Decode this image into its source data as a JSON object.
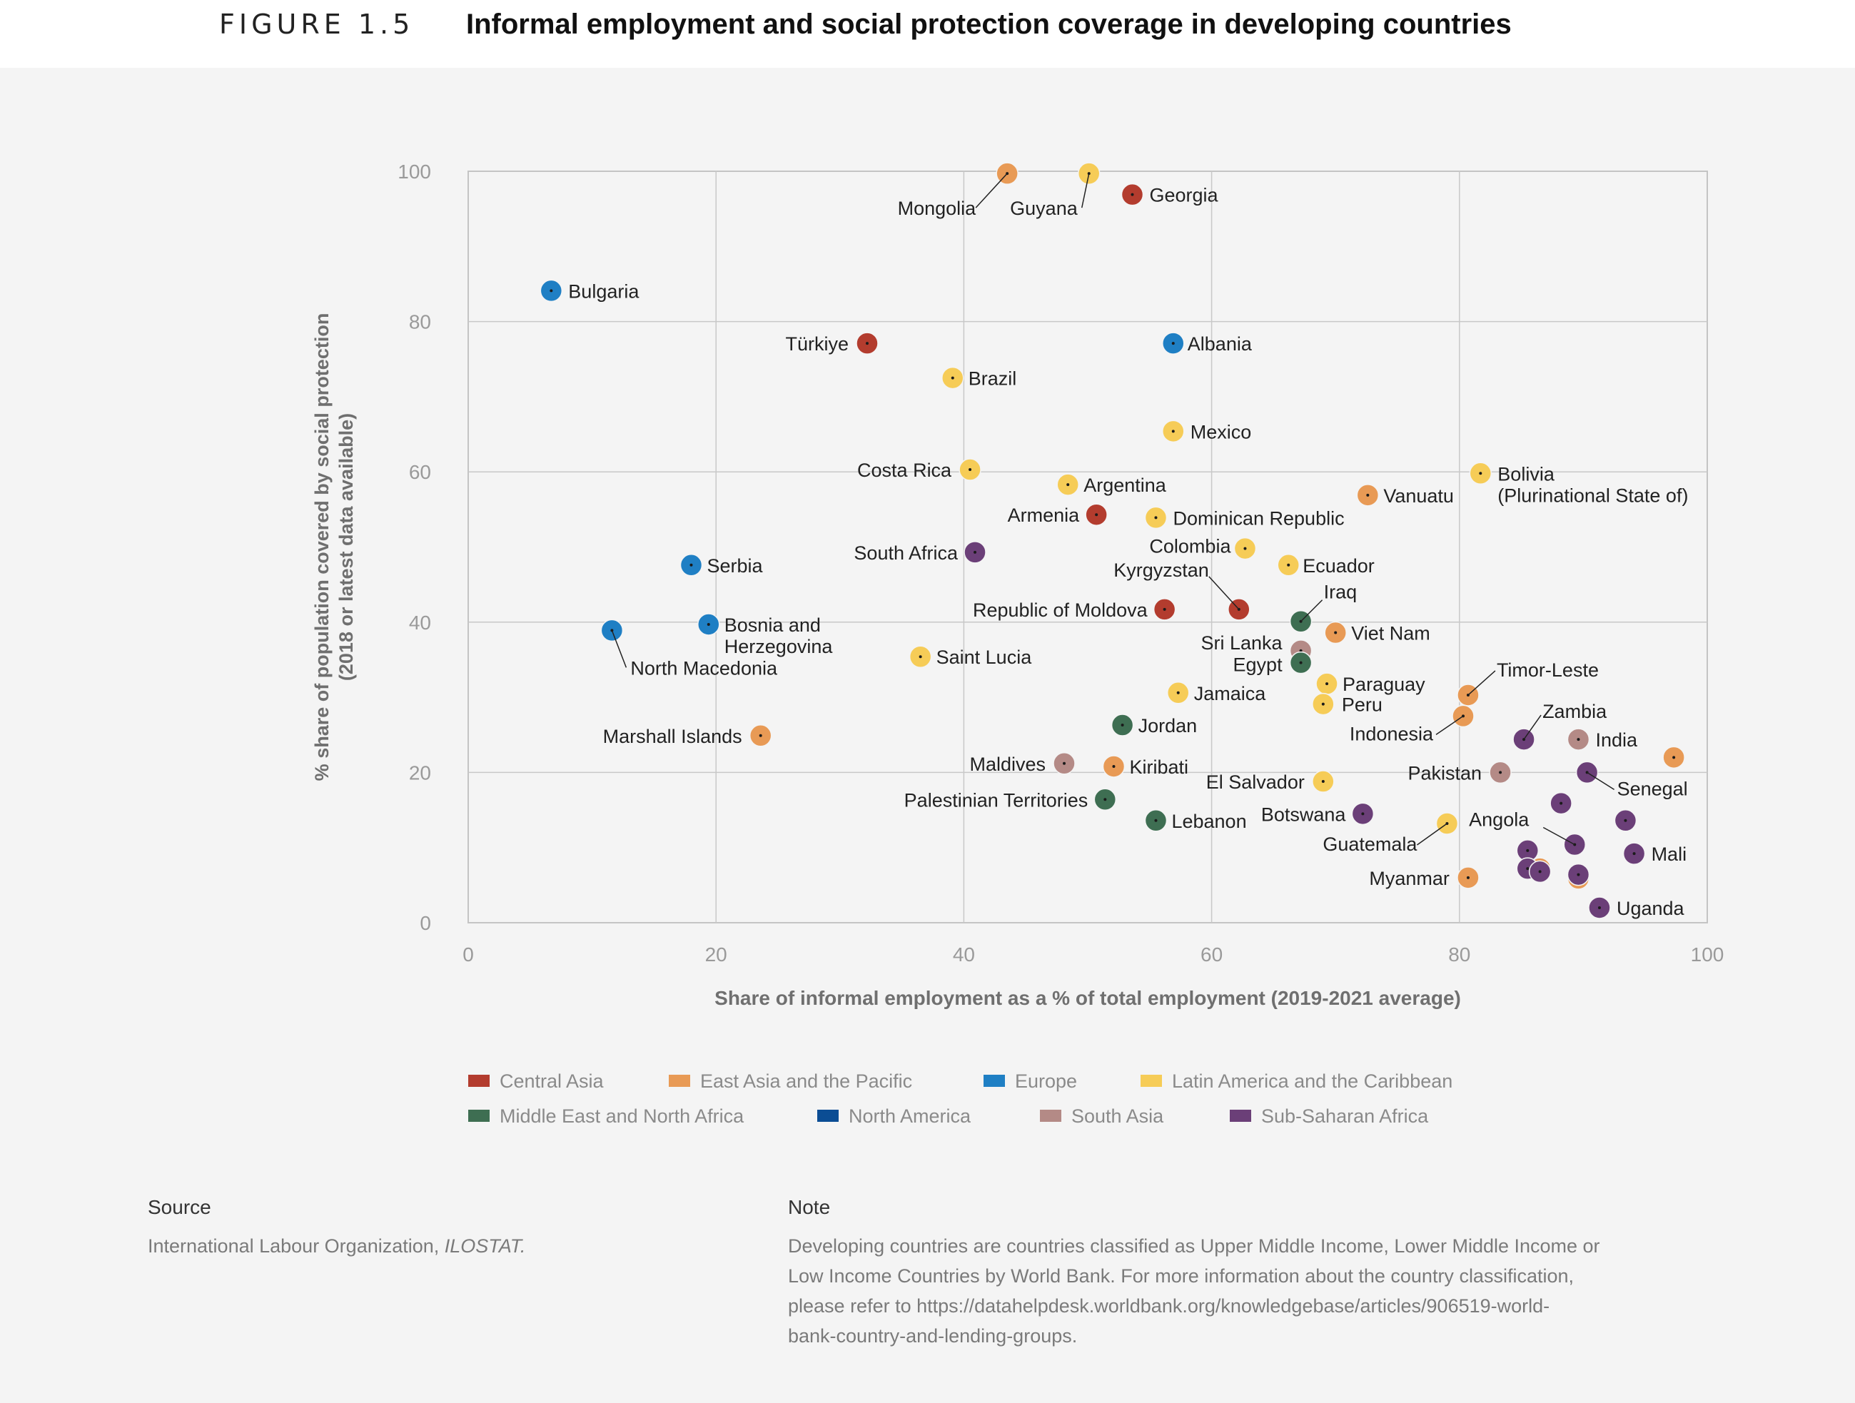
{
  "figure": {
    "label": "FIGURE 1.5",
    "title": "Informal employment and social protection coverage in developing countries"
  },
  "chart_data": {
    "type": "scatter",
    "xlabel": "Share of informal employment as a % of total employment (2019-2021 average)",
    "ylabel_line1": "% share of population covered by social protection",
    "ylabel_line2": "(2018 or latest data available)",
    "xlim": [
      0,
      100
    ],
    "ylim": [
      0,
      100
    ],
    "xticks": [
      0,
      20,
      40,
      60,
      80,
      100
    ],
    "yticks": [
      0,
      20,
      40,
      60,
      80,
      100
    ],
    "grid": true,
    "legend_position": "bottom",
    "series": [
      {
        "name": "Central Asia",
        "color": "#b33c2e"
      },
      {
        "name": "East Asia and the Pacific",
        "color": "#e89a55"
      },
      {
        "name": "Europe",
        "color": "#1f7fc4"
      },
      {
        "name": "Latin America and the Caribbean",
        "color": "#f6cc57"
      },
      {
        "name": "Middle East and North Africa",
        "color": "#3e6e52"
      },
      {
        "name": "North America",
        "color": "#0b4d94"
      },
      {
        "name": "South Asia",
        "color": "#b48a86"
      },
      {
        "name": "Sub-Saharan Africa",
        "color": "#6b3f78"
      }
    ],
    "points": [
      {
        "label": "Mongolia",
        "x": 43.5,
        "y": 99.7,
        "series": 1
      },
      {
        "label": "Guyana",
        "x": 50.1,
        "y": 99.7,
        "series": 3
      },
      {
        "label": "Georgia",
        "x": 53.6,
        "y": 96.9,
        "series": 0
      },
      {
        "label": "Bulgaria",
        "x": 6.7,
        "y": 84.1,
        "series": 2
      },
      {
        "label": "Türkiye",
        "x": 32.2,
        "y": 77.1,
        "series": 0
      },
      {
        "label": "Albania",
        "x": 56.9,
        "y": 77.1,
        "series": 2
      },
      {
        "label": "Brazil",
        "x": 39.1,
        "y": 72.5,
        "series": 3
      },
      {
        "label": "Mexico",
        "x": 56.9,
        "y": 65.4,
        "series": 3
      },
      {
        "label": "Costa Rica",
        "x": 40.5,
        "y": 60.3,
        "series": 3
      },
      {
        "label": "Bolivia",
        "label2": "(Plurinational State of)",
        "x": 81.7,
        "y": 59.8,
        "series": 3
      },
      {
        "label": "Argentina",
        "x": 48.4,
        "y": 58.3,
        "series": 3
      },
      {
        "label": "Vanuatu",
        "x": 72.6,
        "y": 56.9,
        "series": 1
      },
      {
        "label": "Armenia",
        "x": 50.7,
        "y": 54.3,
        "series": 0
      },
      {
        "label": "Dominican Republic",
        "x": 55.5,
        "y": 53.9,
        "series": 3
      },
      {
        "label": "Colombia",
        "x": 62.7,
        "y": 49.8,
        "series": 3
      },
      {
        "label": "South Africa",
        "x": 40.9,
        "y": 49.3,
        "series": 7
      },
      {
        "label": "Serbia",
        "x": 18.0,
        "y": 47.6,
        "series": 2
      },
      {
        "label": "Ecuador",
        "x": 66.2,
        "y": 47.6,
        "series": 3
      },
      {
        "label": "Kyrgyzstan",
        "x": 62.2,
        "y": 41.7,
        "series": 0
      },
      {
        "label": "Republic of Moldova",
        "x": 56.2,
        "y": 41.7,
        "series": 0
      },
      {
        "label": "Iraq",
        "x": 67.2,
        "y": 40.1,
        "series": 4
      },
      {
        "label": "Bosnia and",
        "label2": "Herzegovina",
        "x": 19.4,
        "y": 39.7,
        "series": 2
      },
      {
        "label": "North Macedonia",
        "x": 11.6,
        "y": 38.9,
        "series": 2
      },
      {
        "label": "Viet Nam",
        "x": 70.0,
        "y": 38.6,
        "series": 1
      },
      {
        "label": "Sri Lanka",
        "x": 67.2,
        "y": 36.2,
        "series": 6
      },
      {
        "label": "Saint Lucia",
        "x": 36.5,
        "y": 35.4,
        "series": 3
      },
      {
        "label": "Egypt",
        "x": 67.2,
        "y": 34.6,
        "series": 4
      },
      {
        "label": "Paraguay",
        "x": 69.3,
        "y": 31.8,
        "series": 3
      },
      {
        "label": "Jamaica",
        "x": 57.3,
        "y": 30.6,
        "series": 3
      },
      {
        "label": "Timor-Leste",
        "x": 80.7,
        "y": 30.3,
        "series": 1
      },
      {
        "label": "Peru",
        "x": 69.0,
        "y": 29.1,
        "series": 3
      },
      {
        "label": "Indonesia",
        "x": 80.3,
        "y": 27.5,
        "series": 1
      },
      {
        "label": "Jordan",
        "x": 52.8,
        "y": 26.3,
        "series": 4
      },
      {
        "label": "Marshall Islands",
        "x": 23.6,
        "y": 24.9,
        "series": 1
      },
      {
        "label": "Zambia",
        "x": 85.2,
        "y": 24.4,
        "series": 7
      },
      {
        "label": "India",
        "x": 89.6,
        "y": 24.4,
        "series": 6
      },
      {
        "label": "",
        "x": 97.3,
        "y": 22.0,
        "series": 1
      },
      {
        "label": "Maldives",
        "x": 48.1,
        "y": 21.2,
        "series": 6
      },
      {
        "label": "Kiribati",
        "x": 52.1,
        "y": 20.8,
        "series": 1
      },
      {
        "label": "Pakistan",
        "x": 83.3,
        "y": 20.0,
        "series": 6
      },
      {
        "label": "Senegal",
        "x": 90.3,
        "y": 20.0,
        "series": 7
      },
      {
        "label": "El Salvador",
        "x": 69.0,
        "y": 18.8,
        "series": 3
      },
      {
        "label": "Palestinian Territories",
        "x": 51.4,
        "y": 16.4,
        "series": 4
      },
      {
        "label": "",
        "x": 88.2,
        "y": 15.9,
        "series": 7
      },
      {
        "label": "Botswana",
        "x": 72.2,
        "y": 14.5,
        "series": 7
      },
      {
        "label": "Lebanon",
        "x": 55.5,
        "y": 13.6,
        "series": 4
      },
      {
        "label": "",
        "x": 93.4,
        "y": 13.6,
        "series": 7
      },
      {
        "label": "Guatemala",
        "x": 79.0,
        "y": 13.2,
        "series": 3
      },
      {
        "label": "Angola",
        "x": 89.3,
        "y": 10.4,
        "series": 7
      },
      {
        "label": "",
        "x": 85.5,
        "y": 9.6,
        "series": 7
      },
      {
        "label": "Mali",
        "x": 94.1,
        "y": 9.2,
        "series": 7
      },
      {
        "label": "",
        "x": 86.5,
        "y": 7.2,
        "series": 1
      },
      {
        "label": "",
        "x": 85.5,
        "y": 7.2,
        "series": 7
      },
      {
        "label": "",
        "x": 86.5,
        "y": 6.8,
        "series": 7
      },
      {
        "label": "Myanmar",
        "x": 80.7,
        "y": 6.0,
        "series": 1
      },
      {
        "label": "",
        "x": 89.6,
        "y": 5.9,
        "series": 1
      },
      {
        "label": "",
        "x": 89.6,
        "y": 6.4,
        "series": 7
      },
      {
        "label": "Uganda",
        "x": 91.3,
        "y": 2.0,
        "series": 7
      }
    ]
  },
  "footer": {
    "source_heading": "Source",
    "source_text": "International Labour Organization, ",
    "source_italic": "ILOSTAT.",
    "note_heading": "Note",
    "note_lines": [
      "Developing countries are countries classified as Upper Middle Income, Lower Middle Income or",
      "Low Income Countries by World Bank. For more information about the country classification,",
      "please refer to https://datahelpdesk.worldbank.org/knowledgebase/articles/906519-world-",
      "bank-country-and-lending-groups."
    ]
  }
}
